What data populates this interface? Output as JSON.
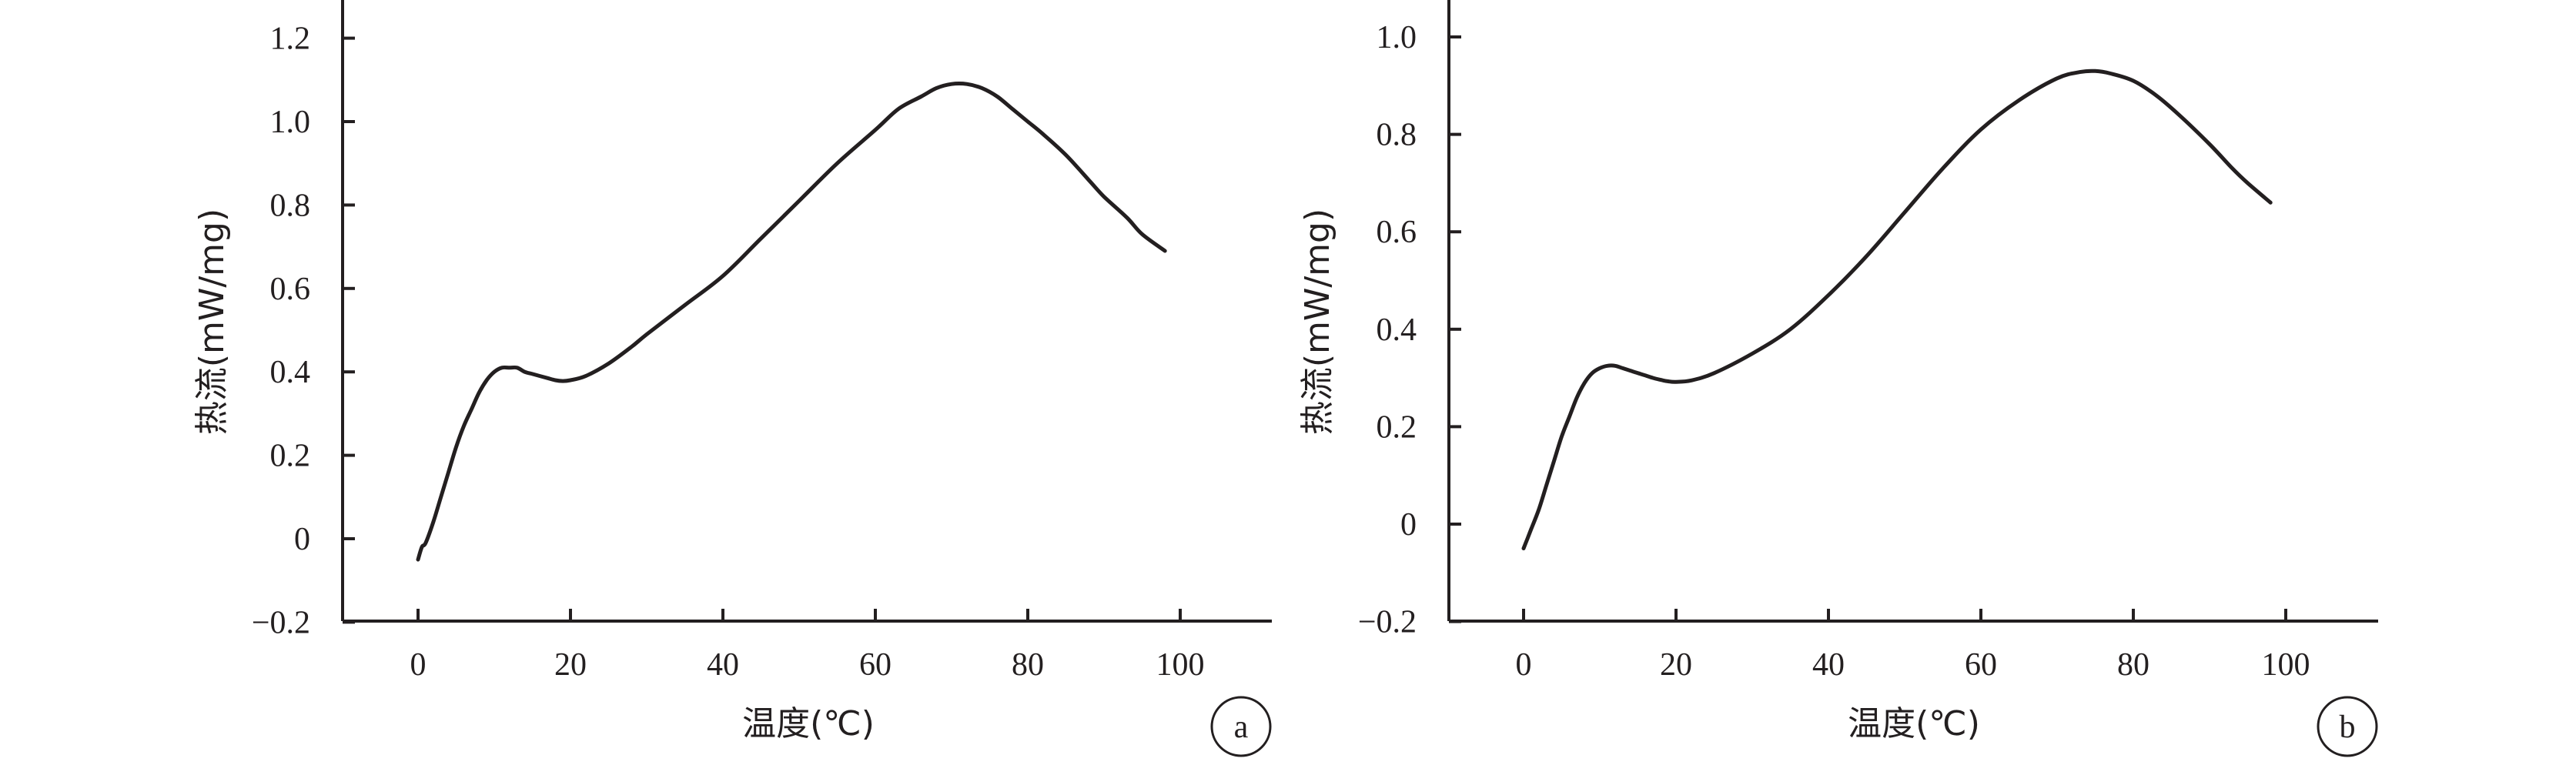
{
  "chart_data": [
    {
      "type": "line",
      "panel_label": "a",
      "xlabel": "温度(℃)",
      "ylabel": "热流(mW/mg)",
      "xlim": [
        -10,
        112
      ],
      "ylim": [
        -0.2,
        1.3
      ],
      "x_ticks": [
        0,
        20,
        40,
        60,
        80,
        100
      ],
      "y_ticks": [
        -0.2,
        0,
        0.2,
        0.4,
        0.6,
        0.8,
        1.0,
        1.2
      ],
      "x_tick_labels": [
        "0",
        "20",
        "40",
        "60",
        "80",
        "100"
      ],
      "y_tick_labels": [
        "−0.2",
        "0",
        "0.2",
        "0.4",
        "0.6",
        "0.8",
        "1.0",
        "1.2"
      ],
      "grid": false,
      "series": [
        {
          "x": [
            0,
            0.5,
            1,
            2,
            3,
            4,
            5,
            6,
            7,
            8,
            9,
            10,
            11,
            12,
            13,
            14,
            15,
            16,
            17,
            18,
            19,
            20,
            22,
            25,
            28,
            30,
            35,
            40,
            45,
            50,
            55,
            60,
            63,
            66,
            68,
            70,
            72,
            74,
            76,
            78,
            80,
            82,
            85,
            88,
            90,
            93,
            95,
            98
          ],
          "y": [
            -0.05,
            -0.02,
            -0.01,
            0.04,
            0.1,
            0.16,
            0.22,
            0.27,
            0.31,
            0.35,
            0.38,
            0.4,
            0.41,
            0.41,
            0.41,
            0.4,
            0.395,
            0.39,
            0.385,
            0.38,
            0.378,
            0.38,
            0.39,
            0.42,
            0.46,
            0.49,
            0.56,
            0.63,
            0.72,
            0.81,
            0.9,
            0.98,
            1.03,
            1.06,
            1.08,
            1.09,
            1.09,
            1.08,
            1.06,
            1.03,
            1.0,
            0.97,
            0.92,
            0.86,
            0.82,
            0.77,
            0.73,
            0.69
          ]
        }
      ]
    },
    {
      "type": "line",
      "panel_label": "b",
      "xlabel": "温度(℃)",
      "ylabel": "热流(mW/mg)",
      "xlim": [
        -10,
        112
      ],
      "ylim": [
        -0.2,
        1.1
      ],
      "x_ticks": [
        0,
        20,
        40,
        60,
        80,
        100
      ],
      "y_ticks": [
        -0.2,
        0,
        0.2,
        0.4,
        0.6,
        0.8,
        1.0
      ],
      "x_tick_labels": [
        "0",
        "20",
        "40",
        "60",
        "80",
        "100"
      ],
      "y_tick_labels": [
        "−0.2",
        "0",
        "0.2",
        "0.4",
        "0.6",
        "0.8",
        "1.0"
      ],
      "grid": false,
      "series": [
        {
          "x": [
            0,
            0.5,
            1,
            2,
            3,
            4,
            5,
            6,
            7,
            8,
            9,
            10,
            11,
            12,
            13,
            14,
            15,
            16,
            17,
            18,
            19,
            20,
            22,
            25,
            30,
            35,
            40,
            45,
            50,
            55,
            60,
            65,
            70,
            73,
            75,
            77,
            80,
            83,
            86,
            90,
            93,
            95,
            98
          ],
          "y": [
            -0.05,
            -0.03,
            -0.01,
            0.03,
            0.08,
            0.13,
            0.18,
            0.22,
            0.26,
            0.29,
            0.31,
            0.32,
            0.325,
            0.325,
            0.32,
            0.315,
            0.31,
            0.305,
            0.3,
            0.296,
            0.293,
            0.292,
            0.295,
            0.31,
            0.35,
            0.4,
            0.47,
            0.55,
            0.64,
            0.73,
            0.81,
            0.87,
            0.915,
            0.928,
            0.93,
            0.925,
            0.91,
            0.88,
            0.84,
            0.78,
            0.73,
            0.7,
            0.66
          ]
        }
      ]
    }
  ]
}
